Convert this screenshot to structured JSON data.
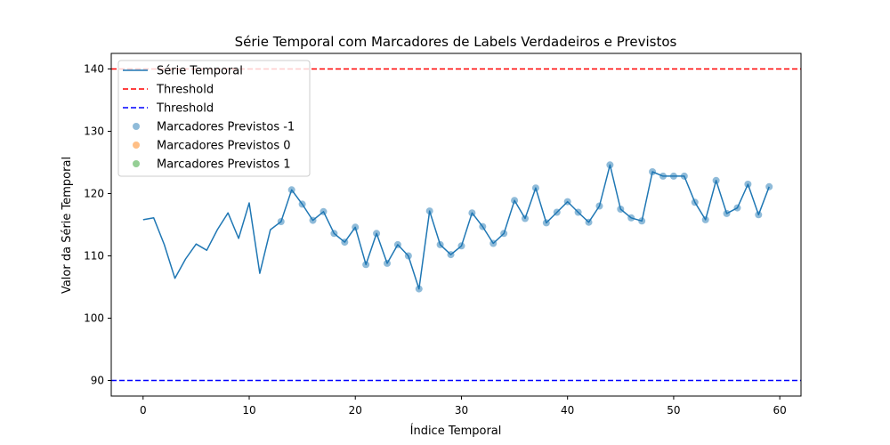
{
  "chart_data": {
    "type": "line",
    "title": "Série Temporal com Marcadores de Labels Verdadeiros e Previstos",
    "xlabel": "Índice Temporal",
    "ylabel": "Valor da Série Temporal",
    "xlim": [
      -3,
      62
    ],
    "ylim": [
      87.5,
      142.5
    ],
    "xticks": [
      0,
      10,
      20,
      30,
      40,
      50,
      60
    ],
    "yticks": [
      90,
      100,
      110,
      120,
      130,
      140
    ],
    "grid": false,
    "legend_position": "top-left",
    "series": [
      {
        "name": "Série Temporal",
        "kind": "line",
        "color": "#1f77b4",
        "x": [
          0,
          1,
          2,
          3,
          4,
          5,
          6,
          7,
          8,
          9,
          10,
          11,
          12,
          13,
          14,
          15,
          16,
          17,
          18,
          19,
          20,
          21,
          22,
          23,
          24,
          25,
          26,
          27,
          28,
          29,
          30,
          31,
          32,
          33,
          34,
          35,
          36,
          37,
          38,
          39,
          40,
          41,
          42,
          43,
          44,
          45,
          46,
          47,
          48,
          49,
          50,
          51,
          52,
          53,
          54,
          55,
          56,
          57,
          58,
          59
        ],
        "y": [
          115.8,
          116.1,
          111.8,
          106.4,
          109.5,
          111.9,
          110.9,
          114.2,
          116.9,
          112.8,
          118.5,
          107.2,
          114.2,
          115.5,
          120.6,
          118.3,
          115.7,
          117.1,
          113.6,
          112.2,
          114.6,
          108.6,
          113.6,
          108.8,
          111.8,
          110.0,
          104.7,
          117.2,
          111.8,
          110.2,
          111.6,
          116.9,
          114.7,
          112.0,
          113.6,
          118.9,
          116.0,
          120.9,
          115.3,
          117.0,
          118.7,
          117.0,
          115.4,
          118.0,
          124.6,
          117.5,
          116.1,
          115.6,
          123.5,
          122.8,
          122.8,
          122.8,
          118.6,
          115.8,
          122.1,
          116.8,
          117.7,
          121.5,
          116.6,
          121.1
        ]
      },
      {
        "name": "Threshold",
        "kind": "hline",
        "y": 140,
        "color": "#ff0000",
        "dash": true
      },
      {
        "name": "Threshold",
        "kind": "hline",
        "y": 90,
        "color": "#0000ff",
        "dash": true
      },
      {
        "name": "Marcadores Previstos -1",
        "kind": "scatter",
        "color": "#1f77b4",
        "x": [
          13,
          14,
          15,
          16,
          17,
          18,
          19,
          20,
          21,
          22,
          23,
          24,
          25,
          26,
          27,
          28,
          29,
          30,
          31,
          32,
          33,
          34,
          35,
          36,
          37,
          38,
          39,
          40,
          41,
          42,
          43,
          44,
          45,
          46,
          47,
          48,
          49,
          50,
          51,
          52,
          53,
          54,
          55,
          56,
          57,
          58,
          59
        ],
        "y": [
          115.5,
          120.6,
          118.3,
          115.7,
          117.1,
          113.6,
          112.2,
          114.6,
          108.6,
          113.6,
          108.8,
          111.8,
          110.0,
          104.7,
          117.2,
          111.8,
          110.2,
          111.6,
          116.9,
          114.7,
          112.0,
          113.6,
          118.9,
          116.0,
          120.9,
          115.3,
          117.0,
          118.7,
          117.0,
          115.4,
          118.0,
          124.6,
          117.5,
          116.1,
          115.6,
          123.5,
          122.8,
          122.8,
          122.8,
          118.6,
          115.8,
          122.1,
          116.8,
          117.7,
          121.5,
          116.6,
          121.1
        ]
      },
      {
        "name": "Marcadores Previstos 0",
        "kind": "scatter",
        "color": "#ff7f0e",
        "x": [],
        "y": []
      },
      {
        "name": "Marcadores Previstos 1",
        "kind": "scatter",
        "color": "#2ca02c",
        "x": [],
        "y": []
      }
    ]
  }
}
